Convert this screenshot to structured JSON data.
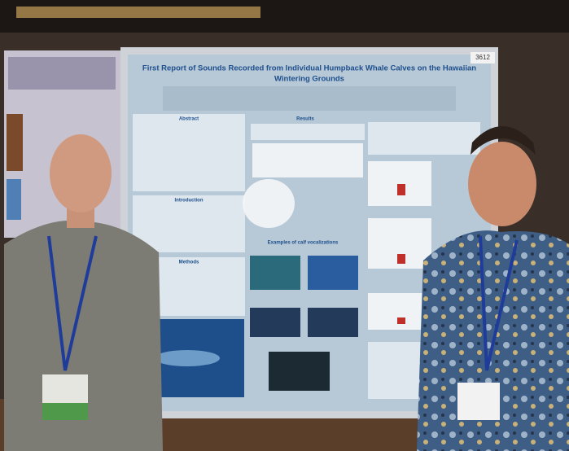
{
  "poster": {
    "title_lines": [
      "First Report of Sounds Recorded from Individual Humpback Whale Calves on the Hawaiian",
      "Wintering Grounds"
    ],
    "board_number": "3612",
    "sections": {
      "abstract": "Abstract",
      "introduction": "Introduction",
      "methods": "Methods",
      "results": "Results",
      "examples": "Examples of calf vocalizations"
    }
  }
}
